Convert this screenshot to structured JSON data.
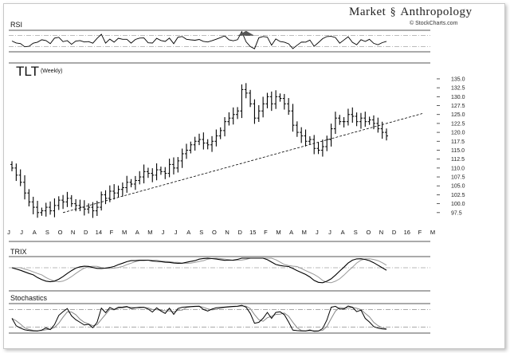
{
  "header": {
    "brand_left": "Market",
    "brand_right": "Anthropology",
    "brand_icon": "dna-helix-icon",
    "credit": "© StockCharts.com"
  },
  "chart_data": {
    "type": "bar",
    "symbol": "TLT",
    "period": "(Weekly)",
    "price_ticks": [
      135.0,
      132.5,
      130.0,
      127.5,
      125.0,
      122.5,
      120.0,
      117.5,
      115.0,
      112.5,
      110.0,
      107.5,
      105.0,
      102.5,
      100.0,
      97.5
    ],
    "ylim": [
      95.0,
      137.0
    ],
    "x_labels": [
      "J",
      "J",
      "A",
      "S",
      "O",
      "N",
      "D",
      "14",
      "F",
      "M",
      "A",
      "M",
      "J",
      "J",
      "A",
      "S",
      "O",
      "N",
      "D",
      "15",
      "F",
      "M",
      "A",
      "M",
      "J",
      "J",
      "A",
      "S",
      "O",
      "N",
      "D",
      "16",
      "F",
      "M"
    ],
    "closes": [
      110,
      108,
      106,
      103,
      100.5,
      99,
      97.5,
      98,
      99,
      98,
      99.5,
      101,
      100.5,
      101.5,
      100,
      99.5,
      99,
      98.5,
      99,
      98,
      99,
      102.5,
      101.5,
      103.5,
      103,
      104,
      104.5,
      106,
      105.5,
      106.5,
      107.5,
      109,
      108.5,
      108,
      109.5,
      109,
      108.5,
      111,
      110,
      112,
      114,
      115,
      116.5,
      117.5,
      118,
      117,
      116.5,
      117.5,
      119,
      120.5,
      123,
      124,
      125,
      126,
      132,
      131,
      128,
      124,
      126,
      128,
      130,
      128,
      130,
      129.5,
      128,
      126,
      122,
      120,
      119,
      117.5,
      118,
      115.5,
      115,
      116,
      118,
      121,
      124,
      123,
      123,
      125,
      124.5,
      123,
      124,
      123,
      123.5,
      122.5,
      121,
      120,
      119
    ],
    "trendline": [
      {
        "week": 12,
        "price": 97.5
      },
      {
        "week": 88,
        "price": 122.5
      }
    ],
    "panels": {
      "rsi": {
        "label": "RSI"
      },
      "trix": {
        "label": "TRIX"
      },
      "stochastics": {
        "label": "Stochastics"
      }
    }
  }
}
